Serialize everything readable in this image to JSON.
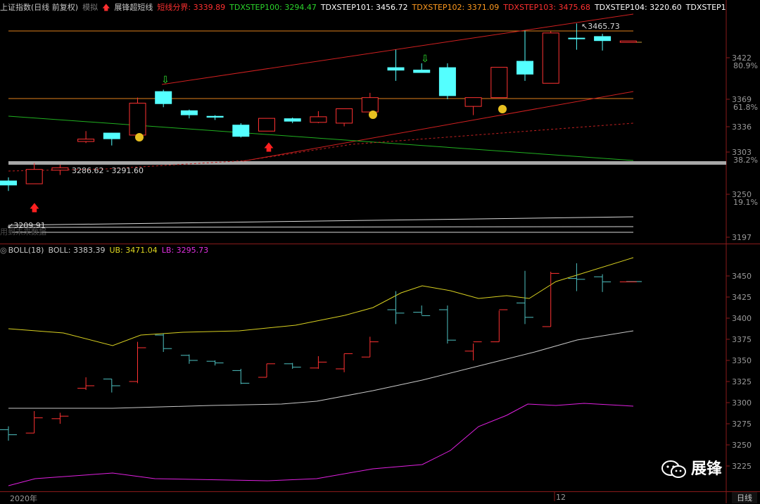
{
  "header": {
    "index_name": "上证指数(日线 前复权)",
    "mode": "模拟",
    "indicator": "展锋超短线",
    "short_line_label": "短线分界:",
    "short_line_value": "3339.89",
    "steps": [
      {
        "label": "TDXSTEP100:",
        "value": "3294.47",
        "color": "#2bd42b"
      },
      {
        "label": "TDXSTEP101:",
        "value": "3456.72",
        "color": "#ffffff"
      },
      {
        "label": "TDXSTEP102:",
        "value": "3371.09",
        "color": "#ff9a1f"
      },
      {
        "label": "TDXSTEP103:",
        "value": "3475.68",
        "color": "#ff3030"
      },
      {
        "label": "TDXSTEP104:",
        "value": "3220.60",
        "color": "#ffffff"
      },
      {
        "label": "TDXSTEP1",
        "value": "",
        "color": "#ffffff"
      }
    ]
  },
  "boll_header": {
    "name": "BOLL(18)",
    "boll_label": "BOLL:",
    "boll_value": "3383.39",
    "ub_label": "UB:",
    "ub_value": "3471.04",
    "lb_label": "LB:",
    "lb_value": "3295.73"
  },
  "annotations": {
    "high_label": "3465.73",
    "range_label": "3286.62 - 3291.60",
    "low_label": "3209.91",
    "faded_text": "用到未来数据"
  },
  "top_axis": [
    {
      "price": "3422",
      "pct": "80.9%"
    },
    {
      "price": "3369",
      "pct": "61.8%"
    },
    {
      "price": "3336",
      "pct": ""
    },
    {
      "price": "3303",
      "pct": "38.2%"
    },
    {
      "price": "3250",
      "pct": "19.1%"
    },
    {
      "price": "3197",
      "pct": ""
    }
  ],
  "bottom_axis": [
    "3450",
    "3425",
    "3400",
    "3375",
    "3350",
    "3325",
    "3300",
    "3275",
    "3250",
    "3225"
  ],
  "footer": {
    "date_label": "2020年",
    "month_label": "12",
    "period": "日线"
  },
  "brand": {
    "text": "展锋"
  },
  "colors": {
    "up": "#ff3232",
    "down": "#54ffff",
    "mid": "#c8c8c8",
    "ub": "#d8d020",
    "lb": "#e020e0",
    "orange": "#e0801c",
    "green": "#20b020",
    "red": "#d02020"
  },
  "candles": [
    {
      "o": 3268,
      "h": 3272,
      "l": 3255,
      "c": 3262
    },
    {
      "o": 3264,
      "h": 3290,
      "l": 3264,
      "c": 3282
    },
    {
      "o": 3281,
      "h": 3288,
      "l": 3275,
      "c": 3284
    },
    {
      "o": 3317,
      "h": 3330,
      "l": 3315,
      "c": 3320
    },
    {
      "o": 3328,
      "h": 3328,
      "l": 3312,
      "c": 3320
    },
    {
      "o": 3325,
      "h": 3372,
      "l": 3323,
      "c": 3365
    },
    {
      "o": 3380,
      "h": 3382,
      "l": 3360,
      "c": 3364
    },
    {
      "o": 3356,
      "h": 3357,
      "l": 3346,
      "c": 3350
    },
    {
      "o": 3349,
      "h": 3350,
      "l": 3344,
      "c": 3347
    },
    {
      "o": 3338,
      "h": 3340,
      "l": 3322,
      "c": 3323
    },
    {
      "o": 3330,
      "h": 3346,
      "l": 3330,
      "c": 3346
    },
    {
      "o": 3346,
      "h": 3347,
      "l": 3340,
      "c": 3342
    },
    {
      "o": 3341,
      "h": 3355,
      "l": 3340,
      "c": 3348
    },
    {
      "o": 3340,
      "h": 3358,
      "l": 3336,
      "c": 3358
    },
    {
      "o": 3354,
      "h": 3378,
      "l": 3354,
      "c": 3372
    },
    {
      "o": 3410,
      "h": 3432,
      "l": 3393,
      "c": 3406
    },
    {
      "o": 3407,
      "h": 3415,
      "l": 3404,
      "c": 3403
    },
    {
      "o": 3410,
      "h": 3415,
      "l": 3370,
      "c": 3374
    },
    {
      "o": 3361,
      "h": 3370,
      "l": 3350,
      "c": 3372
    },
    {
      "o": 3372,
      "h": 3409,
      "l": 3372,
      "c": 3410
    },
    {
      "o": 3418,
      "h": 3456,
      "l": 3393,
      "c": 3401
    },
    {
      "o": 3390,
      "h": 3455,
      "l": 3390,
      "c": 3453
    },
    {
      "o": 3447,
      "h": 3465,
      "l": 3432,
      "c": 3446
    },
    {
      "o": 3449,
      "h": 3452,
      "l": 3431,
      "c": 3443
    },
    {
      "o": 3443,
      "h": 3443,
      "l": 3443,
      "c": 3443
    }
  ]
}
